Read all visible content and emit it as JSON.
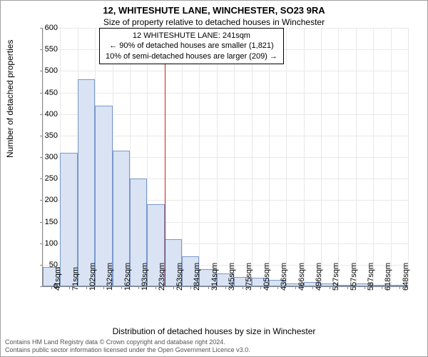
{
  "header": {
    "title": "12, WHITESHUTE LANE, WINCHESTER, SO23 9RA",
    "subtitle": "Size of property relative to detached houses in Winchester"
  },
  "info_box": {
    "line1": "12 WHITESHUTE LANE: 241sqm",
    "line2": "← 90% of detached houses are smaller (1,821)",
    "line3": "10% of semi-detached houses are larger (209) →"
  },
  "chart": {
    "type": "histogram",
    "ylabel": "Number of detached properties",
    "xlabel": "Distribution of detached houses by size in Winchester",
    "ylim": [
      0,
      600
    ],
    "ytick_step": 50,
    "bar_fill": "#d9e3f3",
    "bar_stroke": "#7a98c9",
    "grid_color": "#e8e8e8",
    "refline_color": "#d01c1c",
    "refline_x_index": 7,
    "x_labels": [
      "41sqm",
      "71sqm",
      "102sqm",
      "132sqm",
      "162sqm",
      "193sqm",
      "223sqm",
      "253sqm",
      "284sqm",
      "314sqm",
      "345sqm",
      "375sqm",
      "405sqm",
      "436sqm",
      "466sqm",
      "496sqm",
      "527sqm",
      "557sqm",
      "587sqm",
      "618sqm",
      "648sqm"
    ],
    "values": [
      45,
      310,
      480,
      420,
      315,
      250,
      190,
      110,
      70,
      40,
      30,
      22,
      20,
      15,
      7,
      10,
      6,
      0,
      6,
      0,
      4
    ],
    "label_fontsize": 11
  },
  "footer": {
    "line1": "Contains HM Land Registry data © Crown copyright and database right 2024.",
    "line2": "Contains public sector information licensed under the Open Government Licence v3.0."
  }
}
